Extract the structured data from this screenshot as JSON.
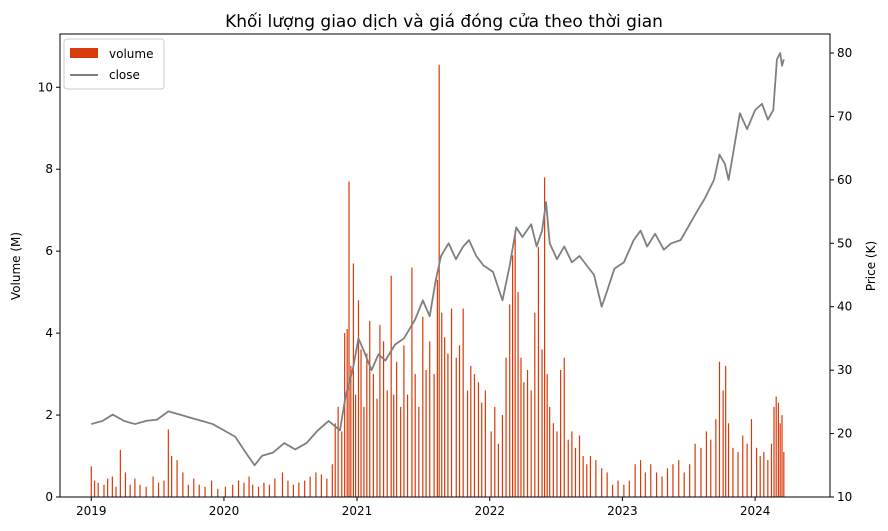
{
  "chart_data": {
    "type": "bar+line",
    "title": "Khối lượng giao dịch và giá đóng cửa theo thời gian",
    "ylabel": "Volume (M)",
    "y2label": "Price (K)",
    "x_ticks": [
      "2019",
      "2020",
      "2021",
      "2022",
      "2023",
      "2024"
    ],
    "x_range": [
      "2018-10-07",
      "2024-07-25"
    ],
    "ylim": [
      0,
      11.3
    ],
    "y_ticks": [
      0,
      2,
      4,
      6,
      8,
      10
    ],
    "y2lim": [
      10,
      83
    ],
    "y2_ticks": [
      10,
      20,
      30,
      40,
      50,
      60,
      70,
      80
    ],
    "colors": {
      "volume": "#d93a09",
      "close": "#7f7f7f"
    },
    "legend": {
      "position": "top-left",
      "entries": [
        {
          "label": "volume",
          "kind": "bar"
        },
        {
          "label": "close",
          "kind": "line"
        }
      ]
    },
    "series": [
      {
        "name": "volume",
        "kind": "bar",
        "unit": "M",
        "points": [
          [
            "2019-01-01",
            0.75
          ],
          [
            "2019-01-10",
            0.4
          ],
          [
            "2019-01-20",
            0.35
          ],
          [
            "2019-02-05",
            0.3
          ],
          [
            "2019-02-15",
            0.45
          ],
          [
            "2019-02-28",
            0.5
          ],
          [
            "2019-03-10",
            0.25
          ],
          [
            "2019-03-22",
            1.15
          ],
          [
            "2019-04-05",
            0.6
          ],
          [
            "2019-04-18",
            0.3
          ],
          [
            "2019-05-01",
            0.45
          ],
          [
            "2019-05-15",
            0.3
          ],
          [
            "2019-06-01",
            0.25
          ],
          [
            "2019-06-20",
            0.5
          ],
          [
            "2019-07-05",
            0.35
          ],
          [
            "2019-07-20",
            0.4
          ],
          [
            "2019-08-01",
            1.65
          ],
          [
            "2019-08-10",
            1.0
          ],
          [
            "2019-08-25",
            0.9
          ],
          [
            "2019-09-10",
            0.6
          ],
          [
            "2019-09-25",
            0.3
          ],
          [
            "2019-10-10",
            0.45
          ],
          [
            "2019-10-25",
            0.3
          ],
          [
            "2019-11-10",
            0.25
          ],
          [
            "2019-11-28",
            0.4
          ],
          [
            "2019-12-15",
            0.2
          ],
          [
            "2020-01-05",
            0.25
          ],
          [
            "2020-01-25",
            0.3
          ],
          [
            "2020-02-10",
            0.4
          ],
          [
            "2020-02-25",
            0.35
          ],
          [
            "2020-03-10",
            0.5
          ],
          [
            "2020-03-20",
            0.3
          ],
          [
            "2020-04-05",
            0.25
          ],
          [
            "2020-04-20",
            0.35
          ],
          [
            "2020-05-05",
            0.3
          ],
          [
            "2020-05-20",
            0.45
          ],
          [
            "2020-06-10",
            0.6
          ],
          [
            "2020-06-25",
            0.4
          ],
          [
            "2020-07-10",
            0.3
          ],
          [
            "2020-07-25",
            0.35
          ],
          [
            "2020-08-10",
            0.4
          ],
          [
            "2020-08-25",
            0.5
          ],
          [
            "2020-09-10",
            0.6
          ],
          [
            "2020-09-25",
            0.55
          ],
          [
            "2020-10-10",
            0.45
          ],
          [
            "2020-10-25",
            0.8
          ],
          [
            "2020-11-02",
            1.8
          ],
          [
            "2020-11-10",
            2.2
          ],
          [
            "2020-11-20",
            1.6
          ],
          [
            "2020-11-28",
            4.0
          ],
          [
            "2020-12-05",
            4.1
          ],
          [
            "2020-12-10",
            7.7
          ],
          [
            "2020-12-15",
            3.2
          ],
          [
            "2020-12-22",
            5.7
          ],
          [
            "2020-12-28",
            2.5
          ],
          [
            "2021-01-05",
            4.8
          ],
          [
            "2021-01-12",
            3.6
          ],
          [
            "2021-01-20",
            2.2
          ],
          [
            "2021-01-28",
            3.5
          ],
          [
            "2021-02-05",
            4.3
          ],
          [
            "2021-02-15",
            3.0
          ],
          [
            "2021-02-25",
            2.4
          ],
          [
            "2021-03-05",
            4.2
          ],
          [
            "2021-03-15",
            3.8
          ],
          [
            "2021-03-25",
            2.6
          ],
          [
            "2021-04-05",
            5.4
          ],
          [
            "2021-04-12",
            2.5
          ],
          [
            "2021-04-20",
            3.3
          ],
          [
            "2021-05-01",
            2.2
          ],
          [
            "2021-05-10",
            3.7
          ],
          [
            "2021-05-20",
            2.5
          ],
          [
            "2021-06-01",
            5.6
          ],
          [
            "2021-06-10",
            3.0
          ],
          [
            "2021-06-20",
            2.2
          ],
          [
            "2021-07-01",
            4.4
          ],
          [
            "2021-07-10",
            3.1
          ],
          [
            "2021-07-20",
            3.8
          ],
          [
            "2021-08-01",
            3.0
          ],
          [
            "2021-08-10",
            5.3
          ],
          [
            "2021-08-15",
            10.55
          ],
          [
            "2021-08-22",
            4.5
          ],
          [
            "2021-08-30",
            3.9
          ],
          [
            "2021-09-08",
            3.5
          ],
          [
            "2021-09-18",
            4.6
          ],
          [
            "2021-10-01",
            3.4
          ],
          [
            "2021-10-10",
            3.7
          ],
          [
            "2021-10-20",
            4.6
          ],
          [
            "2021-11-01",
            2.6
          ],
          [
            "2021-11-10",
            3.2
          ],
          [
            "2021-11-20",
            3.0
          ],
          [
            "2021-12-01",
            2.8
          ],
          [
            "2021-12-10",
            2.3
          ],
          [
            "2021-12-20",
            2.6
          ],
          [
            "2022-01-05",
            1.6
          ],
          [
            "2022-01-15",
            2.2
          ],
          [
            "2022-01-25",
            1.3
          ],
          [
            "2022-02-05",
            2.0
          ],
          [
            "2022-02-15",
            3.4
          ],
          [
            "2022-02-25",
            4.7
          ],
          [
            "2022-03-05",
            5.9
          ],
          [
            "2022-03-12",
            6.5
          ],
          [
            "2022-03-20",
            5.0
          ],
          [
            "2022-03-28",
            3.4
          ],
          [
            "2022-04-05",
            2.8
          ],
          [
            "2022-04-15",
            3.1
          ],
          [
            "2022-04-25",
            2.6
          ],
          [
            "2022-05-05",
            4.5
          ],
          [
            "2022-05-15",
            6.1
          ],
          [
            "2022-05-25",
            3.6
          ],
          [
            "2022-06-01",
            7.8
          ],
          [
            "2022-06-08",
            3.0
          ],
          [
            "2022-06-15",
            2.2
          ],
          [
            "2022-06-25",
            1.8
          ],
          [
            "2022-07-05",
            1.6
          ],
          [
            "2022-07-15",
            3.1
          ],
          [
            "2022-07-25",
            3.4
          ],
          [
            "2022-08-05",
            1.4
          ],
          [
            "2022-08-15",
            1.6
          ],
          [
            "2022-08-25",
            1.2
          ],
          [
            "2022-09-05",
            1.5
          ],
          [
            "2022-09-15",
            1.0
          ],
          [
            "2022-09-25",
            0.8
          ],
          [
            "2022-10-05",
            1.0
          ],
          [
            "2022-10-20",
            0.9
          ],
          [
            "2022-11-05",
            0.7
          ],
          [
            "2022-11-20",
            0.6
          ],
          [
            "2022-12-05",
            0.3
          ],
          [
            "2022-12-20",
            0.4
          ],
          [
            "2023-01-05",
            0.3
          ],
          [
            "2023-01-20",
            0.4
          ],
          [
            "2023-02-05",
            0.8
          ],
          [
            "2023-02-20",
            0.9
          ],
          [
            "2023-03-05",
            0.6
          ],
          [
            "2023-03-20",
            0.8
          ],
          [
            "2023-04-05",
            0.6
          ],
          [
            "2023-04-20",
            0.5
          ],
          [
            "2023-05-05",
            0.7
          ],
          [
            "2023-05-20",
            0.8
          ],
          [
            "2023-06-05",
            0.9
          ],
          [
            "2023-06-20",
            0.6
          ],
          [
            "2023-07-05",
            0.8
          ],
          [
            "2023-07-20",
            1.3
          ],
          [
            "2023-08-05",
            1.2
          ],
          [
            "2023-08-20",
            1.6
          ],
          [
            "2023-09-01",
            1.4
          ],
          [
            "2023-09-15",
            1.9
          ],
          [
            "2023-09-25",
            3.3
          ],
          [
            "2023-10-05",
            2.6
          ],
          [
            "2023-10-12",
            3.2
          ],
          [
            "2023-10-20",
            1.8
          ],
          [
            "2023-11-01",
            1.2
          ],
          [
            "2023-11-15",
            1.1
          ],
          [
            "2023-11-28",
            1.5
          ],
          [
            "2023-12-10",
            1.3
          ],
          [
            "2023-12-22",
            1.9
          ],
          [
            "2024-01-05",
            1.2
          ],
          [
            "2024-01-15",
            1.0
          ],
          [
            "2024-01-25",
            1.1
          ],
          [
            "2024-02-05",
            0.9
          ],
          [
            "2024-02-15",
            1.3
          ],
          [
            "2024-02-22",
            2.2
          ],
          [
            "2024-02-28",
            2.45
          ],
          [
            "2024-03-05",
            2.3
          ],
          [
            "2024-03-10",
            1.8
          ],
          [
            "2024-03-15",
            2.0
          ],
          [
            "2024-03-20",
            1.1
          ]
        ]
      },
      {
        "name": "close",
        "kind": "line",
        "unit": "K",
        "points": [
          [
            "2019-01-01",
            21.5
          ],
          [
            "2019-02-01",
            22.0
          ],
          [
            "2019-03-01",
            23.0
          ],
          [
            "2019-04-01",
            22.0
          ],
          [
            "2019-05-01",
            21.5
          ],
          [
            "2019-06-01",
            22.0
          ],
          [
            "2019-07-01",
            22.2
          ],
          [
            "2019-08-01",
            23.5
          ],
          [
            "2019-09-01",
            23.0
          ],
          [
            "2019-10-01",
            22.5
          ],
          [
            "2019-11-01",
            22.0
          ],
          [
            "2019-12-01",
            21.5
          ],
          [
            "2020-01-01",
            20.5
          ],
          [
            "2020-02-01",
            19.5
          ],
          [
            "2020-03-01",
            17.0
          ],
          [
            "2020-03-25",
            15.0
          ],
          [
            "2020-04-15",
            16.5
          ],
          [
            "2020-05-15",
            17.0
          ],
          [
            "2020-06-15",
            18.5
          ],
          [
            "2020-07-15",
            17.5
          ],
          [
            "2020-08-15",
            18.5
          ],
          [
            "2020-09-15",
            20.5
          ],
          [
            "2020-10-15",
            22.0
          ],
          [
            "2020-11-15",
            20.5
          ],
          [
            "2020-12-01",
            26.0
          ],
          [
            "2020-12-20",
            30.0
          ],
          [
            "2021-01-05",
            35.0
          ],
          [
            "2021-01-20",
            33.0
          ],
          [
            "2021-02-10",
            30.0
          ],
          [
            "2021-03-01",
            32.5
          ],
          [
            "2021-03-20",
            31.5
          ],
          [
            "2021-04-15",
            34.0
          ],
          [
            "2021-05-10",
            35.0
          ],
          [
            "2021-06-10",
            38.0
          ],
          [
            "2021-07-01",
            41.0
          ],
          [
            "2021-07-20",
            38.5
          ],
          [
            "2021-08-05",
            44.0
          ],
          [
            "2021-08-20",
            48.0
          ],
          [
            "2021-09-10",
            50.0
          ],
          [
            "2021-09-30",
            47.5
          ],
          [
            "2021-10-20",
            49.5
          ],
          [
            "2021-11-05",
            50.5
          ],
          [
            "2021-11-25",
            48.0
          ],
          [
            "2021-12-15",
            46.5
          ],
          [
            "2022-01-10",
            45.5
          ],
          [
            "2022-02-05",
            41.0
          ],
          [
            "2022-02-25",
            46.5
          ],
          [
            "2022-03-15",
            52.5
          ],
          [
            "2022-04-01",
            51.0
          ],
          [
            "2022-04-25",
            53.0
          ],
          [
            "2022-05-10",
            49.5
          ],
          [
            "2022-05-25",
            52.0
          ],
          [
            "2022-06-05",
            56.5
          ],
          [
            "2022-06-15",
            50.0
          ],
          [
            "2022-07-05",
            47.5
          ],
          [
            "2022-07-25",
            49.5
          ],
          [
            "2022-08-15",
            47.0
          ],
          [
            "2022-09-05",
            48.0
          ],
          [
            "2022-09-25",
            46.5
          ],
          [
            "2022-10-15",
            45.0
          ],
          [
            "2022-11-05",
            40.0
          ],
          [
            "2022-11-20",
            42.5
          ],
          [
            "2022-12-10",
            46.0
          ],
          [
            "2023-01-05",
            47.0
          ],
          [
            "2023-02-01",
            50.5
          ],
          [
            "2023-02-20",
            52.0
          ],
          [
            "2023-03-10",
            49.5
          ],
          [
            "2023-04-01",
            51.5
          ],
          [
            "2023-04-25",
            49.0
          ],
          [
            "2023-05-15",
            50.0
          ],
          [
            "2023-06-10",
            50.5
          ],
          [
            "2023-07-05",
            53.0
          ],
          [
            "2023-07-25",
            55.0
          ],
          [
            "2023-08-15",
            57.0
          ],
          [
            "2023-09-10",
            60.0
          ],
          [
            "2023-09-25",
            64.0
          ],
          [
            "2023-10-10",
            62.5
          ],
          [
            "2023-10-20",
            60.0
          ],
          [
            "2023-11-01",
            64.0
          ],
          [
            "2023-11-20",
            70.5
          ],
          [
            "2023-12-10",
            68.0
          ],
          [
            "2024-01-01",
            71.0
          ],
          [
            "2024-01-20",
            72.0
          ],
          [
            "2024-02-05",
            69.5
          ],
          [
            "2024-02-20",
            71.0
          ],
          [
            "2024-03-01",
            79.0
          ],
          [
            "2024-03-10",
            80.0
          ],
          [
            "2024-03-15",
            78.0
          ],
          [
            "2024-03-20",
            79.0
          ]
        ]
      }
    ]
  }
}
